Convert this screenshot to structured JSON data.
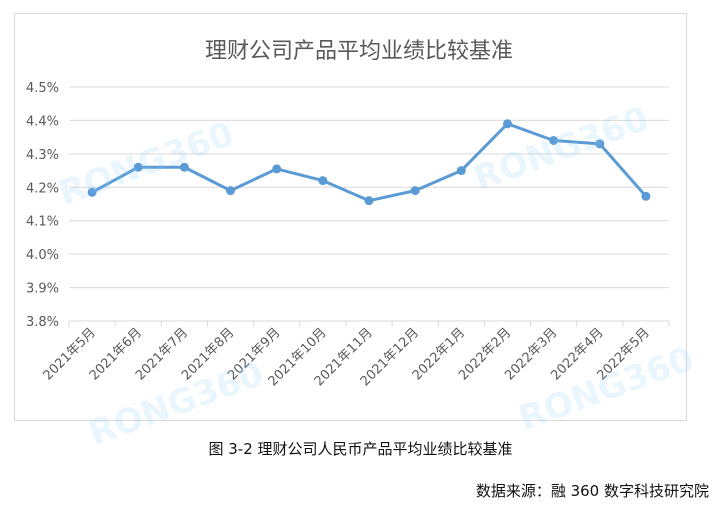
{
  "chart_data": {
    "type": "line",
    "title": "理财公司产品平均业绩比较基准",
    "categories": [
      "2021年5月",
      "2021年6月",
      "2021年7月",
      "2021年8月",
      "2021年9月",
      "2021年10月",
      "2021年11月",
      "2021年12月",
      "2022年1月",
      "2022年2月",
      "2022年3月",
      "2022年4月",
      "2022年5月"
    ],
    "values": [
      4.185,
      4.26,
      4.26,
      4.19,
      4.255,
      4.22,
      4.16,
      4.19,
      4.25,
      4.39,
      4.34,
      4.33,
      4.173
    ],
    "y_ticks": [
      "3.8%",
      "3.9%",
      "4.0%",
      "4.1%",
      "4.2%",
      "4.3%",
      "4.4%",
      "4.5%"
    ],
    "ylim": [
      3.8,
      4.5
    ],
    "grid": true,
    "legend": "none",
    "line_color": "#5b9bd5",
    "axis_color": "#d9d9d9"
  },
  "caption": "图 3-2 理财公司人民币产品平均业绩比较基准",
  "source": "数据来源：融 360 数字科技研究院",
  "watermark": "RONG360"
}
